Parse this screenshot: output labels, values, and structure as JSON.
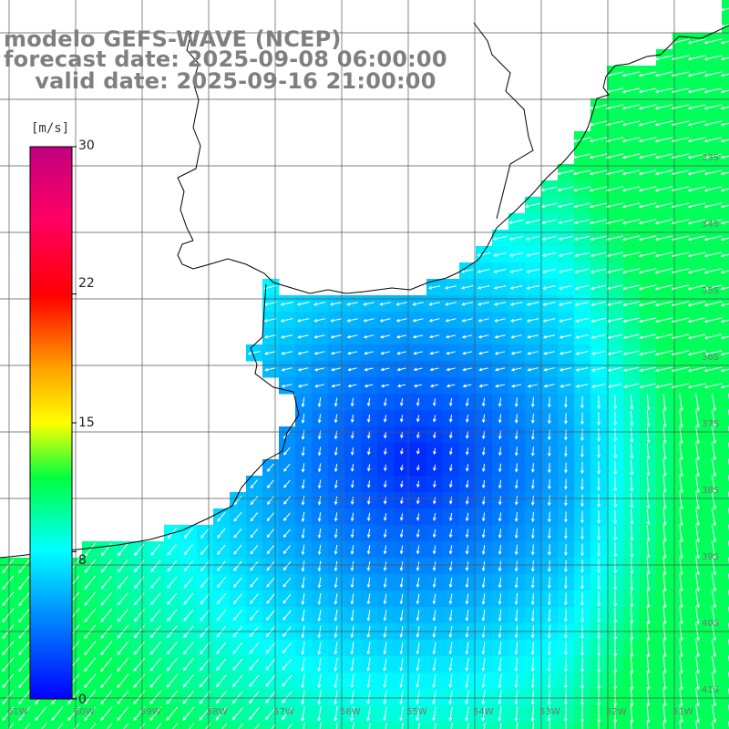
{
  "map": {
    "title_lines": [
      "modelo GEFS-WAVE (NCEP)",
      "forecast date: 2025-09-08 06:00:00",
      "    valid date: 2025-09-16 21:00:00"
    ],
    "variable": "wind speed and direction",
    "units": "[m/s]",
    "colorbar": {
      "ticks": [
        "30",
        "22",
        "15",
        "8",
        "0"
      ],
      "tick_values": [
        30,
        22,
        15,
        8,
        0
      ],
      "range": [
        0,
        30
      ],
      "stops": [
        {
          "v": 0,
          "color": "#0000ff"
        },
        {
          "v": 4,
          "color": "#0078ff"
        },
        {
          "v": 8,
          "color": "#00ffff"
        },
        {
          "v": 12,
          "color": "#00ff40"
        },
        {
          "v": 15,
          "color": "#ffff00"
        },
        {
          "v": 18,
          "color": "#ffa000"
        },
        {
          "v": 22,
          "color": "#ff0000"
        },
        {
          "v": 26,
          "color": "#ff0064"
        },
        {
          "v": 30,
          "color": "#c00080"
        }
      ]
    },
    "lat_labels": [
      "33S",
      "34S",
      "35S",
      "36S",
      "37S",
      "38S",
      "39S",
      "40S",
      "41S"
    ],
    "lon_labels": [
      "61W",
      "60W",
      "59W",
      "58W",
      "57W",
      "56W",
      "55W",
      "54W",
      "53W",
      "52W",
      "51W"
    ],
    "colors": {
      "land": "#ffffff",
      "coast": "#000000",
      "grid": "#555555",
      "arrow": "#ffffff",
      "title": "#7f7f7f"
    }
  }
}
